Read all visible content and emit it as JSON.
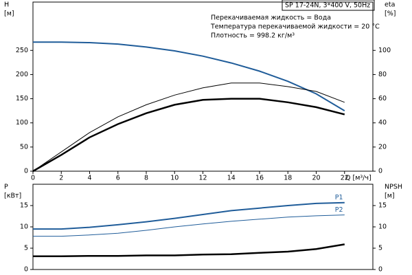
{
  "chart_data": [
    {
      "type": "line",
      "title": "SP 17-24N, 3*400 V, 50Hz",
      "annotations": [
        "Перекачиваемая жидкость = Вода",
        "Температура перекачиваемой жидкости = 20 °C",
        "Плотность = 998.2 кг/м³"
      ],
      "y_label": [
        "H",
        "[м]"
      ],
      "y2_label": [
        "eta",
        "[%]"
      ],
      "x_label": "Q [м³/ч]",
      "xlim": [
        0,
        24
      ],
      "xticks": [
        0,
        2,
        4,
        6,
        8,
        10,
        12,
        14,
        16,
        18,
        20,
        22
      ],
      "ylim": [
        0,
        350
      ],
      "yticks": [
        0,
        50,
        100,
        150,
        200,
        250
      ],
      "y2lim": [
        0,
        140
      ],
      "y2ticks": [
        0,
        20,
        40,
        60,
        80,
        100
      ],
      "grid": false,
      "x": [
        0,
        2,
        4,
        6,
        8,
        10,
        12,
        14,
        16,
        18,
        20,
        22
      ],
      "series": [
        {
          "color": "#1f5c99",
          "values": [
            267,
            267,
            266,
            263,
            257,
            249,
            238,
            224,
            207,
            186,
            160,
            125
          ]
        },
        {
          "color": "#000000",
          "axis": "y2",
          "values": [
            0,
            16,
            32,
            45,
            55,
            63,
            69,
            73,
            73,
            70,
            66,
            57
          ]
        },
        {
          "color": "#000000",
          "axis": "y2",
          "values": [
            0,
            13.5,
            28,
            39,
            48,
            55,
            59,
            60,
            60,
            57,
            53,
            47
          ]
        }
      ]
    },
    {
      "type": "line",
      "y_label": [
        "P",
        "[кВт]"
      ],
      "y2_label": [
        "NPSH",
        "[м]"
      ],
      "xlim": [
        0,
        24
      ],
      "ylim": [
        0,
        20
      ],
      "yticks": [
        0,
        5,
        10,
        15
      ],
      "y2lim": [
        0,
        20
      ],
      "y2ticks": [
        0,
        5,
        10,
        15
      ],
      "grid": false,
      "x": [
        0,
        2,
        4,
        6,
        8,
        10,
        12,
        14,
        16,
        18,
        20,
        22
      ],
      "series": [
        {
          "name": "P1",
          "color": "#1f5c99",
          "values": [
            9.5,
            9.5,
            9.9,
            10.5,
            11.2,
            12,
            12.9,
            13.8,
            14.4,
            15,
            15.5,
            15.7
          ]
        },
        {
          "name": "P2",
          "color": "#1f5c99",
          "values": [
            7.8,
            7.8,
            8.1,
            8.5,
            9.2,
            10,
            10.7,
            11.3,
            11.8,
            12.3,
            12.6,
            12.8
          ]
        },
        {
          "color": "#000000",
          "axis": "y2",
          "values": [
            3.1,
            3.1,
            3.2,
            3.2,
            3.3,
            3.3,
            3.5,
            3.6,
            3.9,
            4.2,
            4.8,
            5.9
          ]
        }
      ]
    }
  ]
}
